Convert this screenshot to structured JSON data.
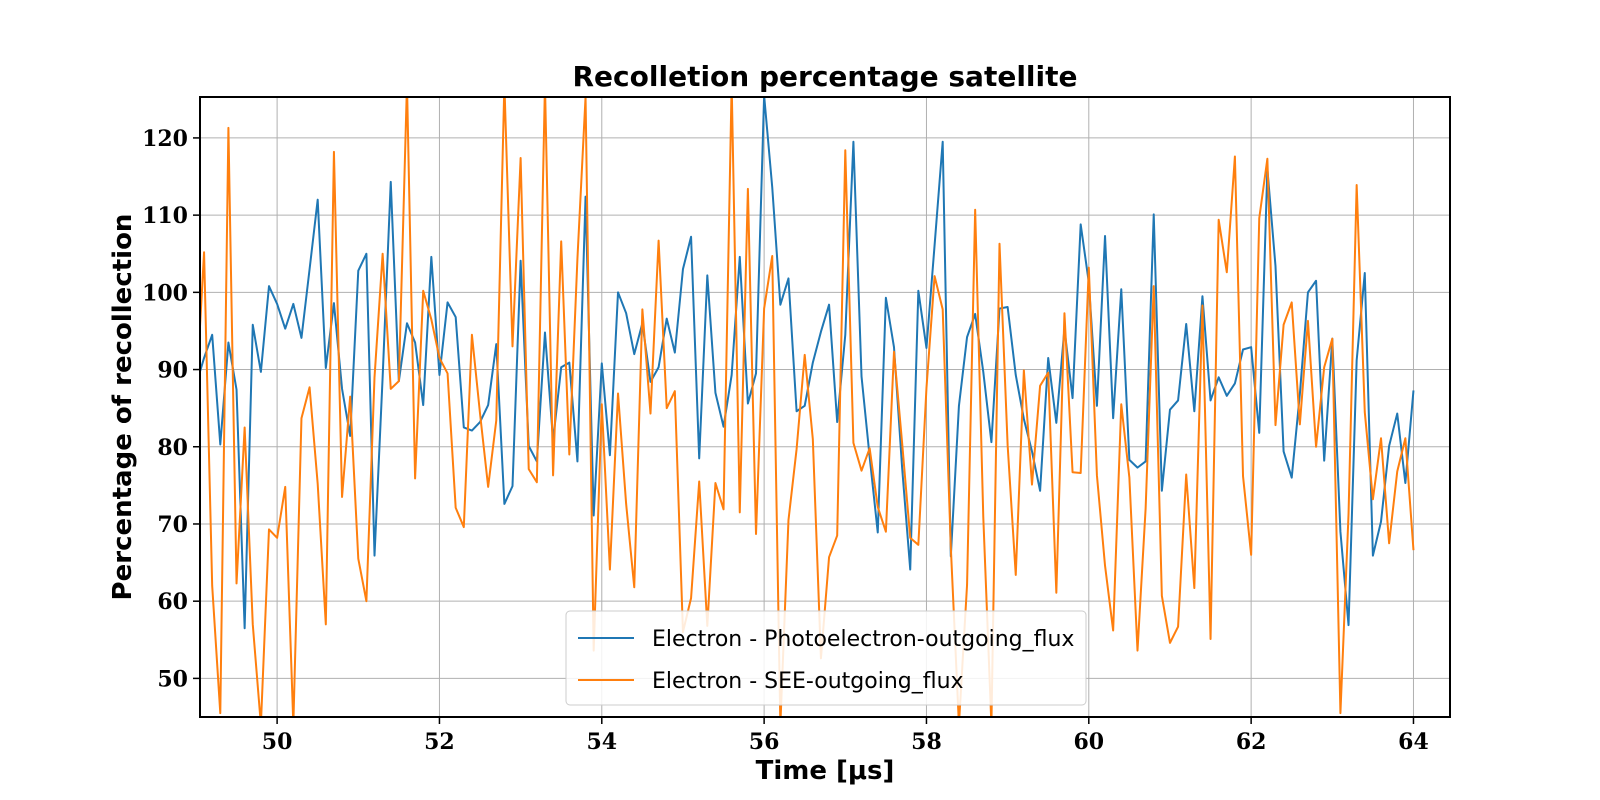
{
  "chart_data": {
    "type": "line",
    "title": "Recolletion percentage satellite",
    "xlabel": "Time [μs]",
    "ylabel": "Percentage of recollection",
    "xlim": [
      49.05,
      64.45
    ],
    "ylim": [
      45,
      125.3
    ],
    "xticks": [
      50,
      52,
      54,
      56,
      58,
      60,
      62,
      64
    ],
    "yticks": [
      50,
      60,
      70,
      80,
      90,
      100,
      110,
      120
    ],
    "grid": true,
    "legend": "lower-center",
    "x": [
      49.0,
      49.1,
      49.2,
      49.3,
      49.4,
      49.5,
      49.6,
      49.7,
      49.8,
      49.9,
      50.0,
      50.1,
      50.2,
      50.3,
      50.4,
      50.5,
      50.6,
      50.7,
      50.8,
      50.9,
      51.0,
      51.1,
      51.2,
      51.3,
      51.4,
      51.5,
      51.6,
      51.7,
      51.8,
      51.9,
      52.0,
      52.1,
      52.2,
      52.3,
      52.4,
      52.5,
      52.6,
      52.7,
      52.8,
      52.9,
      53.0,
      53.1,
      53.2,
      53.3,
      53.4,
      53.5,
      53.6,
      53.7,
      53.8,
      53.9,
      54.0,
      54.1,
      54.2,
      54.3,
      54.4,
      54.5,
      54.6,
      54.7,
      54.8,
      54.9,
      55.0,
      55.1,
      55.2,
      55.3,
      55.4,
      55.5,
      55.6,
      55.7,
      55.8,
      55.9,
      56.0,
      56.1,
      56.2,
      56.3,
      56.4,
      56.5,
      56.6,
      56.7,
      56.8,
      56.9,
      57.0,
      57.1,
      57.2,
      57.3,
      57.4,
      57.5,
      57.6,
      57.7,
      57.8,
      57.9,
      58.0,
      58.1,
      58.2,
      58.3,
      58.4,
      58.5,
      58.6,
      58.7,
      58.8,
      58.9,
      59.0,
      59.1,
      59.2,
      59.3,
      59.4,
      59.5,
      59.6,
      59.7,
      59.8,
      59.9,
      60.0,
      60.1,
      60.2,
      60.3,
      60.4,
      60.5,
      60.6,
      60.7,
      60.8,
      60.9,
      61.0,
      61.1,
      61.2,
      61.3,
      61.4,
      61.5,
      61.6,
      61.7,
      61.8,
      61.9,
      62.0,
      62.1,
      62.2,
      62.3,
      62.4,
      62.5,
      62.6,
      62.7,
      62.8,
      62.9,
      63.0,
      63.1,
      63.2,
      63.3,
      63.4,
      63.5,
      63.6,
      63.7,
      63.8,
      63.9,
      64.0
    ],
    "series": [
      {
        "name": "Electron - Photoelectron-outgoing_flux",
        "color": "#1f77b4",
        "values": [
          88.0,
          91.5,
          94.5,
          80.3,
          93.5,
          87.4,
          56.5,
          95.8,
          89.7,
          100.8,
          98.5,
          95.3,
          98.5,
          94.1,
          103.0,
          112.0,
          90.2,
          98.6,
          87.5,
          81.4,
          102.8,
          105.0,
          65.9,
          89.0,
          114.3,
          88.5,
          96.0,
          93.5,
          85.4,
          104.6,
          89.3,
          98.7,
          96.8,
          82.5,
          82.1,
          83.2,
          85.4,
          93.3,
          72.6,
          74.9,
          104.1,
          80.1,
          78.1,
          94.8,
          80.8,
          90.3,
          90.9,
          78.1,
          112.4,
          71.1,
          90.8,
          78.9,
          100.0,
          97.3,
          92.0,
          96.0,
          88.4,
          90.3,
          96.6,
          92.2,
          103.0,
          107.2,
          78.5,
          102.2,
          87.0,
          82.6,
          89.3,
          104.6,
          85.6,
          89.5,
          125.5,
          113.6,
          98.4,
          101.8,
          84.6,
          85.3,
          90.9,
          94.9,
          98.4,
          83.2,
          94.5,
          119.5,
          89.1,
          78.7,
          68.9,
          99.3,
          92.9,
          77.3,
          64.1,
          100.2,
          92.8,
          106.1,
          119.5,
          65.8,
          85.3,
          94.2,
          97.2,
          89.7,
          80.6,
          97.9,
          98.1,
          89.3,
          83.6,
          79.4,
          74.3,
          91.5,
          83.1,
          95.3,
          86.3,
          108.8,
          101.3,
          85.3,
          107.3,
          83.7,
          100.4,
          78.3,
          77.3,
          78.1,
          110.1,
          74.3,
          84.8,
          86.0,
          95.9,
          84.6,
          99.5,
          86.0,
          89.0,
          86.6,
          88.2,
          92.6,
          92.9,
          81.8,
          116.0,
          103.4,
          79.4,
          76.0,
          86.8,
          100.0,
          101.5,
          78.2,
          94.0,
          69.0,
          56.9,
          91.2,
          102.5,
          65.9,
          70.3,
          80.1,
          84.3,
          75.3,
          87.3
        ]
      },
      {
        "name": "Electron - SEE-outgoing_flux",
        "color": "#ff7f0e",
        "values": [
          86.0,
          105.2,
          62.0,
          45.5,
          121.3,
          62.3,
          82.5,
          57.0,
          44.0,
          69.3,
          68.2,
          74.8,
          44.0,
          83.7,
          87.7,
          75.2,
          57.0,
          118.2,
          73.5,
          86.5,
          65.5,
          60.0,
          89.0,
          105.0,
          87.5,
          88.5,
          127.0,
          75.9,
          100.2,
          96.5,
          91.5,
          89.5,
          72.1,
          69.6,
          94.5,
          84.3,
          74.8,
          83.4,
          127.0,
          93.0,
          117.4,
          77.1,
          75.4,
          127.0,
          76.3,
          106.6,
          79.0,
          104.4,
          125.3,
          53.6,
          85.5,
          64.1,
          86.9,
          72.6,
          61.8,
          97.8,
          84.3,
          106.7,
          85.0,
          87.2,
          56.0,
          60.4,
          75.5,
          56.8,
          75.3,
          71.9,
          127.0,
          71.5,
          113.4,
          68.7,
          97.9,
          104.7,
          44.0,
          70.5,
          79.7,
          91.9,
          81.0,
          52.6,
          65.7,
          68.5,
          118.4,
          80.5,
          76.9,
          79.8,
          72.2,
          69.0,
          92.3,
          80.5,
          68.2,
          67.3,
          87.6,
          102.1,
          97.8,
          67.0,
          44.0,
          62.1,
          110.7,
          70.9,
          44.0,
          106.3,
          80.2,
          63.4,
          89.9,
          75.1,
          87.9,
          89.6,
          61.1,
          97.3,
          76.7,
          76.6,
          103.2,
          76.3,
          64.6,
          56.2,
          85.5,
          76.0,
          53.6,
          72.0,
          100.8,
          60.7,
          54.6,
          56.7,
          76.4,
          61.7,
          98.3,
          55.1,
          109.4,
          102.6,
          117.6,
          76.2,
          66.0,
          109.6,
          117.3,
          82.8,
          95.8,
          98.7,
          82.9,
          96.3,
          80.0,
          90.3,
          94.0,
          45.5,
          71.3,
          113.9,
          84.5,
          73.2,
          81.1,
          67.5,
          76.8,
          81.1,
          66.6
        ]
      }
    ]
  }
}
